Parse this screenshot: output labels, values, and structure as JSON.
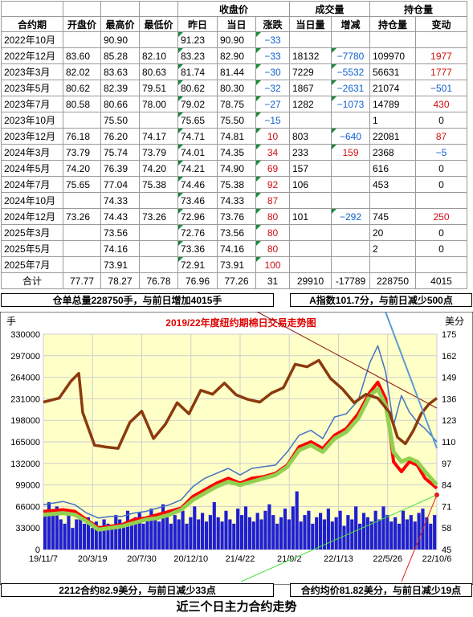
{
  "table": {
    "group_headers": {
      "close": "收盘价",
      "volume": "成交量",
      "oi": "持仓量"
    },
    "headers": [
      "合约期",
      "开盘价",
      "最高价",
      "最低价",
      "昨日",
      "当日",
      "涨跌",
      "当日量",
      "增减",
      "持仓量",
      "变动"
    ],
    "rows": [
      [
        "2022年10月",
        "",
        "90.90",
        "",
        "91.23",
        "90.90",
        "-33",
        "",
        "",
        "",
        ""
      ],
      [
        "2022年12月",
        "83.60",
        "85.28",
        "82.10",
        "83.23",
        "82.90",
        "-33",
        "18132",
        "-7780",
        "109970",
        "1977"
      ],
      [
        "2023年3月",
        "82.02",
        "83.63",
        "80.63",
        "81.74",
        "81.44",
        "-30",
        "7229",
        "-5532",
        "56631",
        "1777"
      ],
      [
        "2023年5月",
        "80.62",
        "82.39",
        "79.51",
        "80.62",
        "80.30",
        "-32",
        "1867",
        "-2631",
        "21074",
        "-501"
      ],
      [
        "2023年7月",
        "80.58",
        "80.66",
        "78.00",
        "79.02",
        "78.75",
        "-27",
        "1282",
        "-1073",
        "14789",
        "430"
      ],
      [
        "2023年10月",
        "",
        "75.50",
        "",
        "75.65",
        "75.50",
        "-15",
        "",
        "",
        "1",
        "0"
      ],
      [
        "2023年12月",
        "76.18",
        "76.20",
        "74.17",
        "74.71",
        "74.81",
        "10",
        "803",
        "-640",
        "22081",
        "87"
      ],
      [
        "2024年3月",
        "73.79",
        "75.74",
        "73.79",
        "74.01",
        "74.35",
        "34",
        "233",
        "159",
        "2368",
        "-5"
      ],
      [
        "2024年5月",
        "74.20",
        "76.39",
        "74.20",
        "74.21",
        "74.90",
        "69",
        "157",
        "",
        "616",
        "0"
      ],
      [
        "2024年7月",
        "75.65",
        "77.04",
        "75.38",
        "74.46",
        "75.38",
        "92",
        "106",
        "",
        "453",
        "0"
      ],
      [
        "2024年10月",
        "",
        "74.33",
        "",
        "73.46",
        "74.33",
        "87",
        "",
        "",
        "",
        ""
      ],
      [
        "2024年12月",
        "73.26",
        "74.43",
        "73.26",
        "72.96",
        "73.76",
        "80",
        "101",
        "-292",
        "745",
        "250"
      ],
      [
        "2025年3月",
        "",
        "73.56",
        "",
        "72.76",
        "73.56",
        "80",
        "",
        "",
        "20",
        "0"
      ],
      [
        "2025年5月",
        "",
        "74.16",
        "",
        "73.36",
        "74.16",
        "80",
        "",
        "",
        "2",
        "0"
      ],
      [
        "2025年7月",
        "",
        "73.91",
        "",
        "72.91",
        "73.91",
        "100",
        "",
        "",
        "",
        ""
      ]
    ],
    "total": [
      "合计",
      "77.77",
      "78.27",
      "76.78",
      "76.96",
      "77.26",
      "31",
      "29910",
      "-17789",
      "228750",
      "4015"
    ]
  },
  "info": {
    "warehouse": "仓单总量228750手，与前日增加4015手",
    "a_index": "A指数101.7分，与前日减少500点",
    "contract_2212": "2212合约82.9美分，与前日减少33点",
    "avg_price": "合约均价81.82美分，与前日减少19点"
  },
  "footer": "近三个日主力合约走势",
  "chart_data": {
    "type": "line",
    "title": "2019/22年度纽约期棉日交易走势图",
    "ylabel_left": "手",
    "ylabel_right": "美分",
    "left_ylim": [
      0,
      330000
    ],
    "left_ticks": [
      "0",
      "33000",
      "66000",
      "99000",
      "132000",
      "165000",
      "198000",
      "231000",
      "264000",
      "297000",
      "330000"
    ],
    "right_ylim": [
      45,
      175
    ],
    "right_ticks": [
      "45",
      "58",
      "71",
      "84",
      "97",
      "110",
      "123",
      "136",
      "149",
      "162",
      "175"
    ],
    "x_ticks": [
      "19/11/7",
      "20/3/19",
      "20/7/30",
      "20/12/10",
      "21/4/22",
      "21/9/2",
      "22/1/13",
      "22/5/26",
      "22/10/6"
    ],
    "grid": true,
    "colors": {
      "open_interest": "#8b3a0e",
      "high": "#4472c4",
      "price": "#ff0000",
      "average": "#92d050",
      "volume": "#1f1fd0",
      "bg": "#ffffc8"
    },
    "series": [
      {
        "name": "open_interest",
        "axis": "left",
        "points": [
          [
            0,
            226000
          ],
          [
            0.04,
            232000
          ],
          [
            0.07,
            258000
          ],
          [
            0.09,
            270000
          ],
          [
            0.1,
            210000
          ],
          [
            0.13,
            160000
          ],
          [
            0.16,
            157000
          ],
          [
            0.19,
            155000
          ],
          [
            0.22,
            195000
          ],
          [
            0.25,
            212000
          ],
          [
            0.28,
            170000
          ],
          [
            0.31,
            192000
          ],
          [
            0.34,
            225000
          ],
          [
            0.37,
            208000
          ],
          [
            0.4,
            244000
          ],
          [
            0.43,
            238000
          ],
          [
            0.46,
            255000
          ],
          [
            0.49,
            237000
          ],
          [
            0.52,
            230000
          ],
          [
            0.55,
            226000
          ],
          [
            0.58,
            240000
          ],
          [
            0.61,
            248000
          ],
          [
            0.64,
            284000
          ],
          [
            0.67,
            280000
          ],
          [
            0.7,
            290000
          ],
          [
            0.73,
            262000
          ],
          [
            0.76,
            246000
          ],
          [
            0.79,
            225000
          ],
          [
            0.82,
            238000
          ],
          [
            0.85,
            232000
          ],
          [
            0.88,
            210000
          ],
          [
            0.9,
            172000
          ],
          [
            0.92,
            162000
          ],
          [
            0.94,
            182000
          ],
          [
            0.96,
            208000
          ],
          [
            0.98,
            223000
          ],
          [
            1.0,
            232000
          ]
        ]
      },
      {
        "name": "high",
        "axis": "right",
        "points": [
          [
            0,
            72
          ],
          [
            0.05,
            74
          ],
          [
            0.08,
            72
          ],
          [
            0.11,
            67
          ],
          [
            0.14,
            64
          ],
          [
            0.17,
            65
          ],
          [
            0.2,
            65
          ],
          [
            0.23,
            67
          ],
          [
            0.26,
            68
          ],
          [
            0.29,
            70
          ],
          [
            0.32,
            72
          ],
          [
            0.35,
            75
          ],
          [
            0.38,
            83
          ],
          [
            0.41,
            88
          ],
          [
            0.44,
            91
          ],
          [
            0.47,
            94
          ],
          [
            0.5,
            90
          ],
          [
            0.53,
            94
          ],
          [
            0.56,
            95
          ],
          [
            0.59,
            96
          ],
          [
            0.62,
            104
          ],
          [
            0.65,
            114
          ],
          [
            0.68,
            117
          ],
          [
            0.71,
            112
          ],
          [
            0.74,
            125
          ],
          [
            0.77,
            127
          ],
          [
            0.8,
            135
          ],
          [
            0.83,
            158
          ],
          [
            0.85,
            168
          ],
          [
            0.87,
            152
          ],
          [
            0.89,
            120
          ],
          [
            0.91,
            138
          ],
          [
            0.93,
            128
          ],
          [
            0.95,
            122
          ],
          [
            0.97,
            118
          ],
          [
            1.0,
            110
          ]
        ]
      },
      {
        "name": "price",
        "axis": "right",
        "points": [
          [
            0,
            68
          ],
          [
            0.05,
            69
          ],
          [
            0.08,
            68
          ],
          [
            0.11,
            63
          ],
          [
            0.14,
            58
          ],
          [
            0.17,
            59
          ],
          [
            0.2,
            60
          ],
          [
            0.23,
            63
          ],
          [
            0.26,
            64
          ],
          [
            0.29,
            66
          ],
          [
            0.32,
            68
          ],
          [
            0.35,
            70
          ],
          [
            0.38,
            77
          ],
          [
            0.41,
            81
          ],
          [
            0.44,
            85
          ],
          [
            0.47,
            88
          ],
          [
            0.5,
            85
          ],
          [
            0.53,
            88
          ],
          [
            0.56,
            89
          ],
          [
            0.59,
            91
          ],
          [
            0.62,
            96
          ],
          [
            0.65,
            107
          ],
          [
            0.68,
            110
          ],
          [
            0.71,
            106
          ],
          [
            0.74,
            114
          ],
          [
            0.77,
            118
          ],
          [
            0.8,
            127
          ],
          [
            0.83,
            140
          ],
          [
            0.85,
            146
          ],
          [
            0.87,
            136
          ],
          [
            0.89,
            98
          ],
          [
            0.91,
            92
          ],
          [
            0.93,
            98
          ],
          [
            0.95,
            96
          ],
          [
            0.97,
            88
          ],
          [
            1.0,
            82
          ]
        ]
      },
      {
        "name": "average",
        "axis": "right",
        "points": [
          [
            0,
            66
          ],
          [
            0.05,
            67
          ],
          [
            0.08,
            66
          ],
          [
            0.11,
            62
          ],
          [
            0.14,
            57
          ],
          [
            0.17,
            58
          ],
          [
            0.2,
            59
          ],
          [
            0.23,
            61
          ],
          [
            0.26,
            63
          ],
          [
            0.29,
            64
          ],
          [
            0.32,
            66
          ],
          [
            0.35,
            69
          ],
          [
            0.38,
            75
          ],
          [
            0.41,
            79
          ],
          [
            0.44,
            83
          ],
          [
            0.47,
            86
          ],
          [
            0.5,
            84
          ],
          [
            0.53,
            86
          ],
          [
            0.56,
            88
          ],
          [
            0.59,
            90
          ],
          [
            0.62,
            95
          ],
          [
            0.65,
            105
          ],
          [
            0.68,
            108
          ],
          [
            0.71,
            104
          ],
          [
            0.74,
            112
          ],
          [
            0.77,
            116
          ],
          [
            0.8,
            124
          ],
          [
            0.83,
            138
          ],
          [
            0.85,
            142
          ],
          [
            0.87,
            132
          ],
          [
            0.89,
            104
          ],
          [
            0.91,
            98
          ],
          [
            0.93,
            100
          ],
          [
            0.95,
            98
          ],
          [
            0.97,
            92
          ],
          [
            1.0,
            84
          ]
        ]
      }
    ],
    "volume_levels": [
      0.18,
      0.22,
      0.16,
      0.2,
      0.14,
      0.12,
      0.18,
      0.1,
      0.14,
      0.16,
      0.12,
      0.15,
      0.1,
      0.13,
      0.11,
      0.14,
      0.12,
      0.1,
      0.16,
      0.14,
      0.12,
      0.18,
      0.13,
      0.15,
      0.17,
      0.12,
      0.14,
      0.19,
      0.16,
      0.13,
      0.21,
      0.15,
      0.12,
      0.16,
      0.14,
      0.18,
      0.12,
      0.15,
      0.2,
      0.14,
      0.17,
      0.13,
      0.16,
      0.22,
      0.15,
      0.13,
      0.18,
      0.14,
      0.12,
      0.19,
      0.16,
      0.2,
      0.15,
      0.13,
      0.17,
      0.14,
      0.18,
      0.21,
      0.16,
      0.12,
      0.15,
      0.19,
      0.14,
      0.2,
      0.27,
      0.13,
      0.16,
      0.18,
      0.12,
      0.15,
      0.17,
      0.14,
      0.19,
      0.13,
      0.15,
      0.18,
      0.11,
      0.16,
      0.14,
      0.2,
      0.12,
      0.17,
      0.15,
      0.13,
      0.18,
      0.14,
      0.2,
      0.16,
      0.13,
      0.15,
      0.12,
      0.18,
      0.14,
      0.16,
      0.13,
      0.17,
      0.19,
      0.15,
      0.12,
      0.16
    ]
  }
}
